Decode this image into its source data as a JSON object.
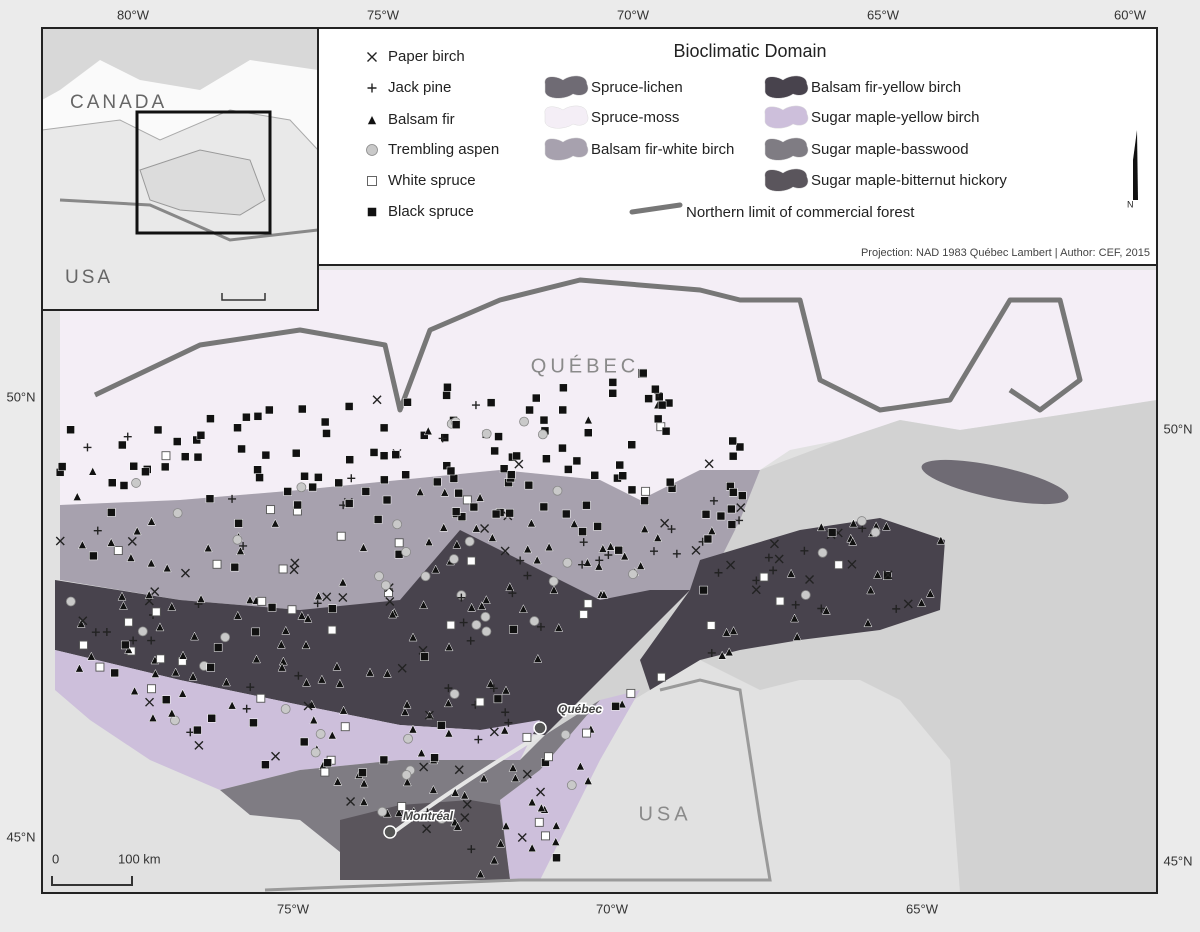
{
  "top_axis": [
    "80°W",
    "75°W",
    "70°W",
    "65°W",
    "60°W"
  ],
  "bottom_axis": [
    "75°W",
    "70°W",
    "65°W"
  ],
  "left_axis": [
    "50°N",
    "45°N"
  ],
  "right_axis": [
    "50°N",
    "45°N"
  ],
  "inset": {
    "labels": [
      "CANADA",
      "USA"
    ]
  },
  "legend": {
    "title": "Bioclimatic Domain",
    "species": [
      {
        "label": "Paper birch",
        "symbol": "cross"
      },
      {
        "label": "Jack pine",
        "symbol": "plus"
      },
      {
        "label": "Balsam fir",
        "symbol": "triangle"
      },
      {
        "label": "Trembling aspen",
        "symbol": "circle"
      },
      {
        "label": "White spruce",
        "symbol": "open-square"
      },
      {
        "label": "Black spruce",
        "symbol": "square"
      }
    ],
    "domains": [
      {
        "label": "Spruce-lichen",
        "color": "#6f6b74"
      },
      {
        "label": "Spruce-moss",
        "color": "#f4eef6"
      },
      {
        "label": "Balsam fir-white birch",
        "color": "#a7a1ae"
      },
      {
        "label": "Balsam fir-yellow birch",
        "color": "#48434d"
      },
      {
        "label": "Sugar maple-yellow birch",
        "color": "#cdbfdb"
      },
      {
        "label": "Sugar maple-basswood",
        "color": "#7f7c83"
      },
      {
        "label": "Sugar maple-bitternut hickory",
        "color": "#5a555c"
      }
    ],
    "limit": "Northern limit of commercial forest",
    "north": "N",
    "credit": "Projection: NAD 1983 Québec Lambert | Author: CEF, 2015"
  },
  "map_labels": {
    "province": "QUÉBEC",
    "country": "USA",
    "cities": [
      "Québec",
      "Montréal"
    ]
  },
  "scale": {
    "labels": [
      "0",
      "100 km"
    ]
  }
}
